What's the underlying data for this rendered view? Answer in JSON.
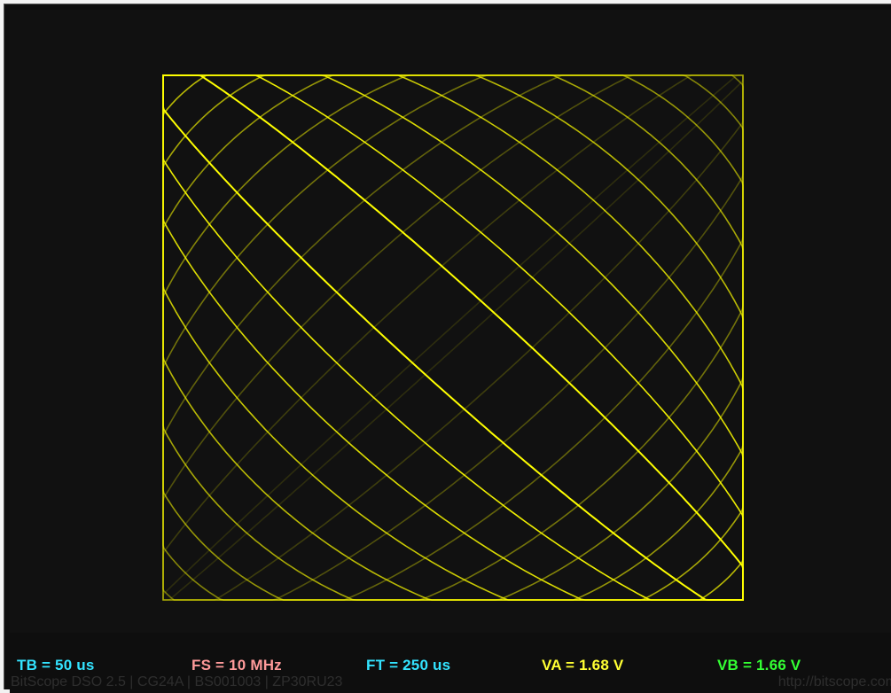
{
  "readouts": {
    "tb": {
      "text": "TB = 50 us",
      "color": "#33e3ff"
    },
    "fs": {
      "text": "FS = 10 MHz",
      "color": "#ff9a9a"
    },
    "ft": {
      "text": "FT = 250 us",
      "color": "#33e3ff"
    },
    "va": {
      "text": "VA = 1.68 V",
      "color": "#ffff33"
    },
    "vb": {
      "text": "VB = 1.66 V",
      "color": "#33ff33"
    }
  },
  "footer": {
    "info": "BitScope DSO 2.5 | CG24A | BS001003 | ZP30RU23",
    "url": "http://bitscope.com"
  },
  "display": {
    "mode": "XY",
    "trace_color": "#ffff00",
    "background": "#111111"
  }
}
